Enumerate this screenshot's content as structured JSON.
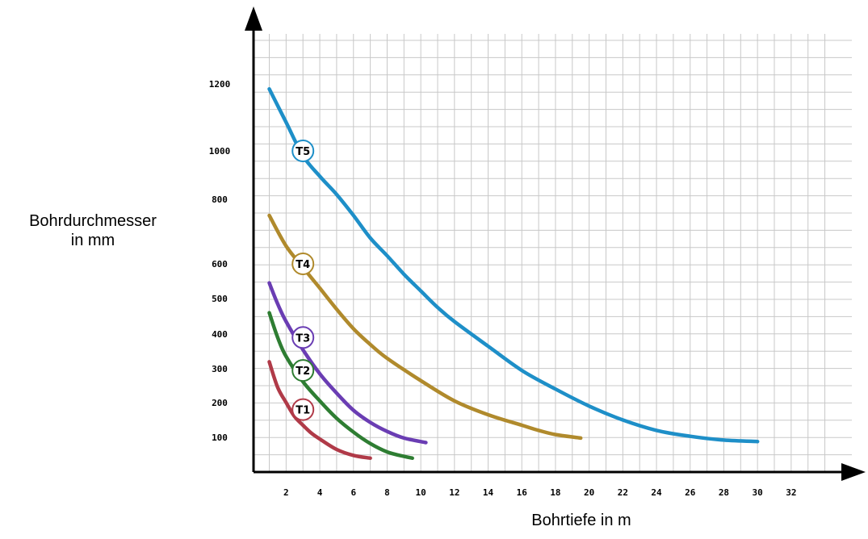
{
  "chart_data": {
    "type": "line",
    "xlabel": "Bohrtiefe in m",
    "ylabel_lines": [
      "Bohrdurchmesser",
      "in mm"
    ],
    "x_ticks": [
      2,
      4,
      6,
      8,
      10,
      12,
      14,
      16,
      18,
      20,
      22,
      24,
      26,
      28,
      30,
      32
    ],
    "y_ticks": [
      100,
      200,
      300,
      400,
      500,
      600,
      800,
      1000,
      1200
    ],
    "grid": true,
    "series": [
      {
        "name": "T1",
        "color": "#b03a48",
        "points": [
          [
            1,
            320
          ],
          [
            1.5,
            245
          ],
          [
            2,
            200
          ],
          [
            2.5,
            160
          ],
          [
            3,
            135
          ],
          [
            3.5,
            112
          ],
          [
            4,
            95
          ],
          [
            5,
            65
          ],
          [
            6,
            48
          ],
          [
            7,
            40
          ]
        ]
      },
      {
        "name": "T2",
        "color": "#2e7d32",
        "points": [
          [
            1,
            460
          ],
          [
            1.5,
            390
          ],
          [
            2,
            335
          ],
          [
            3,
            262
          ],
          [
            4,
            205
          ],
          [
            5,
            155
          ],
          [
            6,
            115
          ],
          [
            7,
            82
          ],
          [
            8,
            58
          ],
          [
            9,
            45
          ],
          [
            9.5,
            40
          ]
        ]
      },
      {
        "name": "T3",
        "color": "#6a3db3",
        "points": [
          [
            1,
            545
          ],
          [
            1.5,
            485
          ],
          [
            2,
            435
          ],
          [
            3,
            355
          ],
          [
            4,
            285
          ],
          [
            5,
            228
          ],
          [
            6,
            178
          ],
          [
            7,
            143
          ],
          [
            8,
            117
          ],
          [
            9,
            98
          ],
          [
            10.3,
            85
          ]
        ]
      },
      {
        "name": "T4",
        "color": "#b08a2c",
        "points": [
          [
            1,
            750
          ],
          [
            2,
            655
          ],
          [
            3,
            590
          ],
          [
            4,
            530
          ],
          [
            5,
            470
          ],
          [
            6,
            415
          ],
          [
            7,
            370
          ],
          [
            8,
            330
          ],
          [
            10,
            265
          ],
          [
            12,
            205
          ],
          [
            14,
            165
          ],
          [
            16,
            135
          ],
          [
            17,
            120
          ],
          [
            18,
            108
          ],
          [
            19.5,
            98
          ]
        ]
      },
      {
        "name": "T5",
        "color": "#1e8fc8",
        "points": [
          [
            1,
            1185
          ],
          [
            2,
            1085
          ],
          [
            3,
            980
          ],
          [
            4,
            895
          ],
          [
            5,
            820
          ],
          [
            6,
            750
          ],
          [
            7,
            680
          ],
          [
            8,
            625
          ],
          [
            9,
            570
          ],
          [
            10,
            522
          ],
          [
            11,
            475
          ],
          [
            12,
            435
          ],
          [
            14,
            365
          ],
          [
            16,
            295
          ],
          [
            18,
            240
          ],
          [
            20,
            190
          ],
          [
            22,
            150
          ],
          [
            24,
            120
          ],
          [
            26,
            103
          ],
          [
            28,
            92
          ],
          [
            30,
            88
          ]
        ]
      }
    ],
    "badges": [
      {
        "label": "T1",
        "x": 3,
        "y": 180
      },
      {
        "label": "T2",
        "x": 3,
        "y": 295
      },
      {
        "label": "T3",
        "x": 3,
        "y": 390
      },
      {
        "label": "T4",
        "x": 3,
        "y": 600
      },
      {
        "label": "T5",
        "x": 3,
        "y": 1000
      }
    ]
  }
}
